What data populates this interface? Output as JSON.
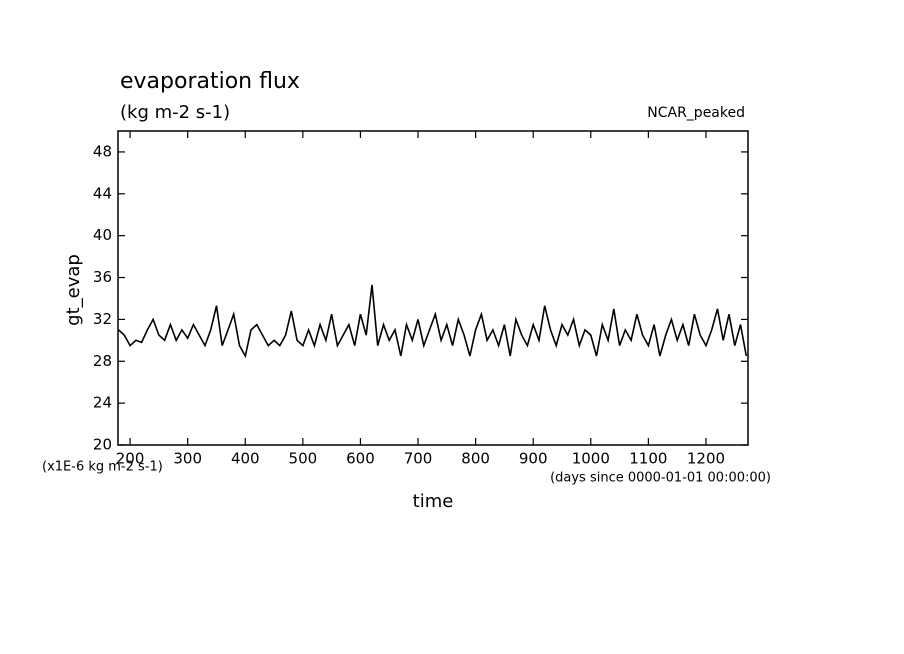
{
  "chart_data": {
    "type": "line",
    "title": "evaporation flux",
    "subtitle": "(kg m-2 s-1)",
    "annotation": "NCAR_peaked",
    "y_label": "gt_evap",
    "x_label": "time",
    "y_units_note": "(x1E-6 kg m-2 s-1)",
    "x_units_note": "(days since 0000-01-01 00:00:00)",
    "xlim": [
      179,
      1273
    ],
    "ylim": [
      20,
      50
    ],
    "xticks": [
      200,
      300,
      400,
      500,
      600,
      700,
      800,
      900,
      1000,
      1100,
      1200
    ],
    "yticks": [
      20,
      24,
      28,
      32,
      36,
      40,
      44,
      48
    ],
    "grid": false,
    "x": [
      180,
      190,
      200,
      210,
      220,
      230,
      240,
      250,
      260,
      270,
      280,
      290,
      300,
      310,
      320,
      330,
      340,
      350,
      360,
      370,
      380,
      390,
      400,
      410,
      420,
      430,
      440,
      450,
      460,
      470,
      480,
      490,
      500,
      510,
      520,
      530,
      540,
      550,
      560,
      570,
      580,
      590,
      600,
      610,
      620,
      630,
      640,
      650,
      660,
      670,
      680,
      690,
      700,
      710,
      720,
      730,
      740,
      750,
      760,
      770,
      780,
      790,
      800,
      810,
      820,
      830,
      840,
      850,
      860,
      870,
      880,
      890,
      900,
      910,
      920,
      930,
      940,
      950,
      960,
      970,
      980,
      990,
      1000,
      1010,
      1020,
      1030,
      1040,
      1050,
      1060,
      1070,
      1080,
      1090,
      1100,
      1110,
      1120,
      1130,
      1140,
      1150,
      1160,
      1170,
      1180,
      1190,
      1200,
      1210,
      1220,
      1230,
      1240,
      1250,
      1260,
      1270
    ],
    "series": [
      {
        "name": "gt_evap",
        "color": "#000000",
        "values": [
          31,
          30.5,
          29.5,
          30,
          29.8,
          31,
          32,
          30.5,
          30,
          31.5,
          30,
          31,
          30.2,
          31.5,
          30.5,
          29.5,
          31,
          33.3,
          29.5,
          31,
          32.5,
          29.5,
          28.5,
          31,
          31.5,
          30.5,
          29.5,
          30,
          29.5,
          30.5,
          32.8,
          30,
          29.5,
          31,
          29.5,
          31.5,
          30,
          32.5,
          29.5,
          30.5,
          31.5,
          29.5,
          32.5,
          30.5,
          35.3,
          29.5,
          31.5,
          30,
          31,
          28.5,
          31.5,
          30,
          32,
          29.5,
          31,
          32.5,
          30,
          31.5,
          29.5,
          32,
          30.5,
          28.5,
          31,
          32.5,
          30,
          31,
          29.5,
          31.5,
          28.5,
          32,
          30.5,
          29.5,
          31.5,
          30,
          33.3,
          31,
          29.5,
          31.5,
          30.5,
          32,
          29.5,
          31,
          30.5,
          28.5,
          31.5,
          30,
          33,
          29.5,
          31,
          30,
          32.5,
          30.5,
          29.5,
          31.5,
          28.5,
          30.5,
          32,
          30,
          31.5,
          29.5,
          32.5,
          30.5,
          29.5,
          31,
          33,
          30,
          32.5,
          29.5,
          31.5,
          28.5
        ]
      }
    ]
  }
}
